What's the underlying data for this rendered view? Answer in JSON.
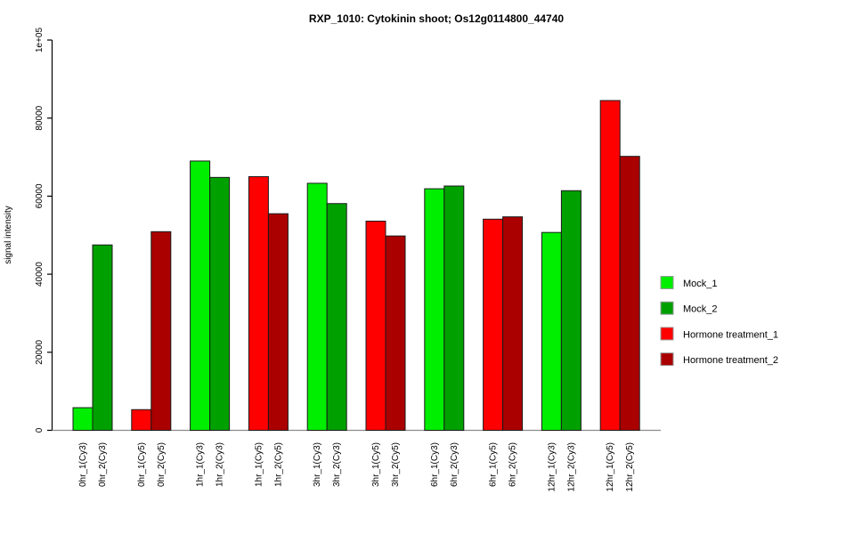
{
  "chart_data": {
    "type": "bar",
    "title": "RXP_1010: Cytokinin shoot; Os12g0114800_44740",
    "ylabel": "signal intensity",
    "xlabel": "",
    "ylim": [
      0,
      100000
    ],
    "ytick_values": [
      0,
      20000,
      40000,
      60000,
      80000,
      100000
    ],
    "ytick_labels": [
      "0",
      "20000",
      "40000",
      "60000",
      "80000",
      "1e+05"
    ],
    "grid": false,
    "legend_position": "right-middle",
    "bars_per_group": 2,
    "series": [
      {
        "name": "Mock_1",
        "color": "#00EE00"
      },
      {
        "name": "Mock_2",
        "color": "#00A000"
      },
      {
        "name": "Hormone treatment_1",
        "color": "#FF0000"
      },
      {
        "name": "Hormone treatment_2",
        "color": "#AA0000"
      }
    ],
    "bars": [
      {
        "label": "0hr_1(Cy3)",
        "value": 5800,
        "series": "Mock_1"
      },
      {
        "label": "0hr_2(Cy3)",
        "value": 47500,
        "series": "Mock_2"
      },
      {
        "label": "0hr_1(Cy5)",
        "value": 5300,
        "series": "Hormone treatment_1"
      },
      {
        "label": "0hr_2(Cy5)",
        "value": 50900,
        "series": "Hormone treatment_2"
      },
      {
        "label": "1hr_1(Cy3)",
        "value": 69000,
        "series": "Mock_1"
      },
      {
        "label": "1hr_2(Cy3)",
        "value": 64800,
        "series": "Mock_2"
      },
      {
        "label": "1hr_1(Cy5)",
        "value": 65000,
        "series": "Hormone treatment_1"
      },
      {
        "label": "1hr_2(Cy5)",
        "value": 55500,
        "series": "Hormone treatment_2"
      },
      {
        "label": "3hr_1(Cy3)",
        "value": 63300,
        "series": "Mock_1"
      },
      {
        "label": "3hr_2(Cy3)",
        "value": 58100,
        "series": "Mock_2"
      },
      {
        "label": "3hr_1(Cy5)",
        "value": 53600,
        "series": "Hormone treatment_1"
      },
      {
        "label": "3hr_2(Cy5)",
        "value": 49800,
        "series": "Hormone treatment_2"
      },
      {
        "label": "6hr_1(Cy3)",
        "value": 61900,
        "series": "Mock_1"
      },
      {
        "label": "6hr_2(Cy3)",
        "value": 62600,
        "series": "Mock_2"
      },
      {
        "label": "6hr_1(Cy5)",
        "value": 54100,
        "series": "Hormone treatment_1"
      },
      {
        "label": "6hr_2(Cy5)",
        "value": 54700,
        "series": "Hormone treatment_2"
      },
      {
        "label": "12hr_1(Cy3)",
        "value": 50700,
        "series": "Mock_1"
      },
      {
        "label": "12hr_2(Cy3)",
        "value": 61400,
        "series": "Mock_2"
      },
      {
        "label": "12hr_1(Cy5)",
        "value": 84500,
        "series": "Hormone treatment_1"
      },
      {
        "label": "12hr_2(Cy5)",
        "value": 70200,
        "series": "Hormone treatment_2"
      }
    ],
    "axis_color": "#000000",
    "baseline_color": "#8c8c8c",
    "bar_border_color": "#1a1a1a"
  }
}
